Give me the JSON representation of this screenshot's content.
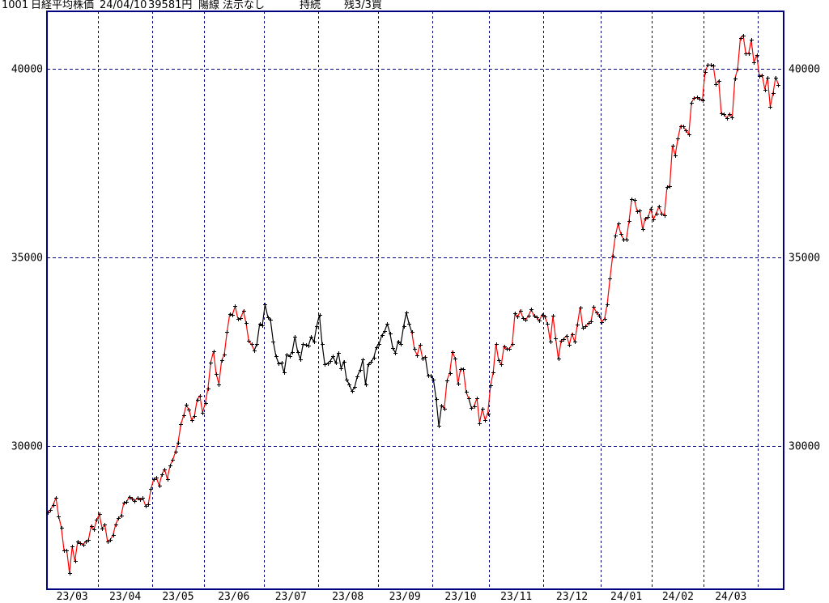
{
  "header": {
    "code": "1001",
    "name": "日経平均株価",
    "date": "24/04/10",
    "price": "39581円",
    "candle": "陽線",
    "note": "法示なし",
    "status": "持続",
    "position": "残3/3買"
  },
  "chart_data": {
    "type": "line",
    "title": "1001 日経平均株価 24/04/10 39581円",
    "xlabel": "",
    "ylabel": "",
    "yticks": [
      40000,
      35000,
      30000
    ],
    "ylim": [
      26200,
      41620
    ],
    "grid": "dashed-navy",
    "legend_position": "none",
    "marker": "plus",
    "x_months": [
      {
        "label": "23/03",
        "days": 19
      },
      {
        "label": "23/04",
        "days": 20
      },
      {
        "label": "23/05",
        "days": 19
      },
      {
        "label": "23/06",
        "days": 22
      },
      {
        "label": "23/07",
        "days": 20
      },
      {
        "label": "23/08",
        "days": 22
      },
      {
        "label": "23/09",
        "days": 20
      },
      {
        "label": "23/10",
        "days": 21
      },
      {
        "label": "23/11",
        "days": 20
      },
      {
        "label": "23/12",
        "days": 21
      },
      {
        "label": "24/01",
        "days": 19
      },
      {
        "label": "24/02",
        "days": 19
      },
      {
        "label": "24/03",
        "days": 20
      },
      {
        "label": "",
        "days": 8
      }
    ],
    "values": [
      28237,
      28309,
      28444,
      28623,
      28143,
      27832,
      27222,
      27229,
      26632,
      27333,
      26945,
      27466,
      27419,
      27385,
      27477,
      27518,
      27884,
      27783,
      28041,
      28188,
      27813,
      27913,
      27472,
      27518,
      27633,
      27923,
      28082,
      28156,
      28493,
      28514,
      28658,
      28606,
      28537,
      28620,
      28593,
      28620,
      28416,
      28457,
      28856,
      29123,
      29158,
      28949,
      29242,
      29388,
      29126,
      29475,
      29626,
      29842,
      30093,
      30573,
      30808,
      31086,
      30957,
      30682,
      30801,
      31233,
      31328,
      30887,
      31148,
      31524,
      32217,
      32506,
      31914,
      31641,
      32265,
      32434,
      33018,
      33502,
      33485,
      33706,
      33370,
      33388,
      33575,
      33264,
      32781,
      32698,
      32538,
      32698,
      33234,
      33189,
      33753,
      33422,
      33338,
      32773,
      32388,
      32189,
      32203,
      31943,
      32419,
      32391,
      32493,
      32896,
      32490,
      32304,
      32700,
      32683,
      32668,
      32891,
      32759,
      33172,
      33477,
      32707,
      32159,
      32193,
      32254,
      32377,
      32204,
      32473,
      32059,
      32239,
      31766,
      31626,
      31451,
      31566,
      31856,
      32010,
      32287,
      31624,
      32169,
      32226,
      32333,
      32619,
      32711,
      32939,
      33037,
      33241,
      32991,
      32606,
      32467,
      32776,
      32706,
      33168,
      33533,
      33242,
      33023,
      32571,
      32402,
      32678,
      32315,
      32371,
      31872,
      31857,
      31759,
      31237,
      30526,
      31075,
      30994,
      31746,
      31936,
      32494,
      32315,
      31659,
      32040,
      32042,
      31430,
      31259,
      30999,
      31062,
      31269,
      30601,
      30991,
      30696,
      30858,
      31601,
      31949,
      32708,
      32271,
      32166,
      32646,
      32568,
      32585,
      32695,
      33519,
      33424,
      33585,
      33388,
      33354,
      33451,
      33625,
      33447,
      33408,
      33321,
      33486,
      33431,
      33231,
      32776,
      33445,
      32858,
      32307,
      32791,
      32843,
      32926,
      32686,
      32970,
      32758,
      33219,
      33676,
      33140,
      33169,
      33254,
      33306,
      33681,
      33540,
      33464,
      33288,
      33377,
      33763,
      34441,
      35049,
      35577,
      35901,
      35619,
      35477,
      35466,
      35963,
      36546,
      36517,
      36226,
      36236,
      35751,
      36026,
      36065,
      36287,
      36011,
      36158,
      36354,
      36160,
      36119,
      36863,
      36897,
      37963,
      37703,
      38157,
      38487,
      38470,
      38363,
      38262,
      39098,
      39233,
      39239,
      39208,
      39166,
      39910,
      40109,
      40097,
      40090,
      39598,
      39688,
      38820,
      38797,
      38696,
      38807,
      38708,
      39740,
      40003,
      40815,
      40888,
      40414,
      40398,
      40762,
      40168,
      40369,
      39803,
      39839,
      39452,
      39773,
      38992,
      39347,
      39773,
      39581
    ],
    "segment_colors": [
      {
        "from": 0,
        "to": 75,
        "color": "red"
      },
      {
        "from": 76,
        "to": 133,
        "color": "black"
      },
      {
        "from": 134,
        "to": 138,
        "color": "red"
      },
      {
        "from": 139,
        "to": 145,
        "color": "black"
      },
      {
        "from": 146,
        "to": 151,
        "color": "red"
      },
      {
        "from": 152,
        "to": 152,
        "color": "black"
      },
      {
        "from": 153,
        "to": 154,
        "color": "red"
      },
      {
        "from": 155,
        "to": 155,
        "color": "black"
      },
      {
        "from": 156,
        "to": 268,
        "color": "red"
      }
    ],
    "colors": {
      "grid": "#000080",
      "line_up": "#ff0000",
      "line_down": "#000000",
      "marker": "#000000",
      "text": "#000000",
      "background": "#ffffff"
    }
  }
}
